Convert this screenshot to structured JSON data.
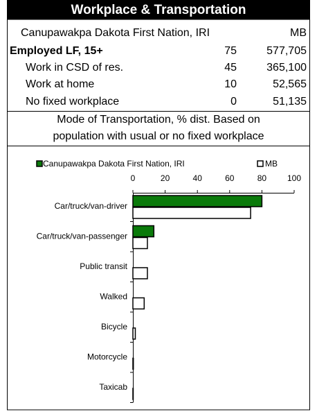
{
  "header": {
    "title": "Workplace & Transportation"
  },
  "table": {
    "columns": [
      "Canupawakpa Dakota First Nation, IRI",
      "MB"
    ],
    "rows": [
      [
        "Employed LF, 15+",
        "75",
        "577,705"
      ],
      [
        "Work in CSD of res.",
        "45",
        "365,100"
      ],
      [
        "Work at home",
        "10",
        "52,565"
      ],
      [
        "No fixed workplace",
        "0",
        "51,135"
      ]
    ]
  },
  "note": [
    "Mode of Transportation, % dist. Based on",
    "population with usual or no fixed workplace"
  ],
  "chart_data": {
    "type": "bar",
    "orientation": "horizontal",
    "categories": [
      "Car/truck/van-driver",
      "Car/truck/van-passenger",
      "Public transit",
      "Walked",
      "Bicycle",
      "Motorcycle",
      "Taxicab"
    ],
    "series": [
      {
        "name": "Canupawakpa Dakota First Nation, IRI",
        "color": "#0a7a0a",
        "values": [
          80,
          13,
          0,
          0,
          0,
          0,
          0
        ]
      },
      {
        "name": "MB",
        "color": "#ffffff",
        "values": [
          73,
          9,
          9,
          7,
          1.5,
          0.3,
          0.2
        ]
      }
    ],
    "xlim": [
      0,
      100
    ],
    "xticks": [
      0,
      20,
      40,
      60,
      80,
      100
    ]
  }
}
